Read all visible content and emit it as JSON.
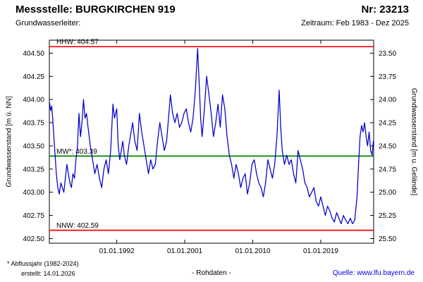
{
  "header": {
    "title": "Messstelle: BURGKIRCHEN 919",
    "number": "Nr: 23213",
    "subtitle_left": "Grundwasserleiter:",
    "subtitle_right": "Zeitraum: Feb 1983 - Dez 2025"
  },
  "footer": {
    "footnote": "* Abflussjahr (1982-2024)",
    "created": "erstellt:  14.01.2026",
    "center": "- Rohdaten -",
    "source_label": "Quelle:",
    "source_link": "www.lfu.bayern.de"
  },
  "chart_data": {
    "type": "line",
    "title": "Messstelle: BURGKIRCHEN 919",
    "series_name": "Rohdaten",
    "ylabel_left": "Grundwasserstand [m ü. NN]",
    "ylabel_right": "Grundwasserstand [m u. Gelände]",
    "x_ticks": [
      "01.01.1992",
      "01.01.2001",
      "01.01.2010",
      "01.01.2019"
    ],
    "x_tick_years": [
      1992.0,
      2001.0,
      2010.0,
      2019.0
    ],
    "x_range": [
      1983.08,
      2026.0
    ],
    "y_range": [
      402.45,
      404.64
    ],
    "y_left_tick_labels": [
      "402.50",
      "402.75",
      "403.00",
      "403.25",
      "403.50",
      "403.75",
      "404.00",
      "404.25",
      "404.50"
    ],
    "y_right_tick_labels": [
      "23.50",
      "23.75",
      "24.00",
      "24.25",
      "24.50",
      "24.75",
      "25.00",
      "25.25",
      "25.50"
    ],
    "right_axis_offset": 428.0,
    "grid": false,
    "legend": "none",
    "line_color": "#0000cc",
    "ref_lines": [
      {
        "name": "hhw",
        "label": "HHW: 404.57",
        "value": 404.57,
        "color": "#ff0000"
      },
      {
        "name": "mw",
        "label": "MW*: 403.39",
        "value": 403.39,
        "color": "#008000"
      },
      {
        "name": "nnw",
        "label": "NNW: 402.59",
        "value": 402.59,
        "color": "#ff0000"
      }
    ],
    "x": [
      1983.1,
      1983.25,
      1983.4,
      1983.6,
      1983.8,
      1984.0,
      1984.2,
      1984.4,
      1984.6,
      1984.8,
      1985.0,
      1985.2,
      1985.4,
      1985.6,
      1985.8,
      1986.0,
      1986.2,
      1986.4,
      1986.6,
      1986.8,
      1987.0,
      1987.2,
      1987.4,
      1987.6,
      1987.8,
      1988.0,
      1988.2,
      1988.5,
      1988.8,
      1989.1,
      1989.4,
      1989.7,
      1990.0,
      1990.3,
      1990.6,
      1990.9,
      1991.2,
      1991.5,
      1991.7,
      1992.0,
      1992.2,
      1992.4,
      1992.6,
      1992.8,
      1993.0,
      1993.3,
      1993.6,
      1993.9,
      1994.1,
      1994.4,
      1994.7,
      1995.0,
      1995.3,
      1995.6,
      1995.9,
      1996.2,
      1996.5,
      1996.8,
      1997.1,
      1997.4,
      1997.7,
      1998.0,
      1998.3,
      1998.6,
      1998.9,
      1999.1,
      1999.4,
      1999.7,
      2000.0,
      2000.3,
      2000.6,
      2000.9,
      2001.2,
      2001.5,
      2001.8,
      2002.1,
      2002.4,
      2002.7,
      2002.9,
      2003.1,
      2003.3,
      2003.6,
      2003.9,
      2004.2,
      2004.5,
      2004.8,
      2005.1,
      2005.4,
      2005.7,
      2006.0,
      2006.3,
      2006.6,
      2006.9,
      2007.2,
      2007.5,
      2007.8,
      2008.1,
      2008.4,
      2008.7,
      2009.0,
      2009.3,
      2009.6,
      2009.9,
      2010.2,
      2010.5,
      2010.8,
      2011.1,
      2011.4,
      2011.7,
      2012.0,
      2012.3,
      2012.6,
      2012.9,
      2013.2,
      2013.5,
      2013.7,
      2013.9,
      2014.2,
      2014.5,
      2014.8,
      2015.1,
      2015.4,
      2015.7,
      2016.0,
      2016.3,
      2016.6,
      2016.9,
      2017.2,
      2017.5,
      2017.8,
      2018.1,
      2018.4,
      2018.7,
      2019.0,
      2019.3,
      2019.6,
      2019.9,
      2020.2,
      2020.5,
      2020.8,
      2021.1,
      2021.4,
      2021.7,
      2022.0,
      2022.3,
      2022.6,
      2022.9,
      2023.2,
      2023.5,
      2023.8,
      2024.0,
      2024.2,
      2024.4,
      2024.6,
      2024.8,
      2025.0,
      2025.2,
      2025.4,
      2025.6,
      2025.8,
      2025.95
    ],
    "y": [
      403.97,
      403.88,
      403.93,
      403.7,
      403.45,
      403.2,
      403.05,
      402.98,
      403.1,
      403.05,
      403.0,
      403.15,
      403.3,
      403.2,
      403.1,
      403.05,
      403.2,
      403.15,
      403.35,
      403.5,
      403.85,
      403.6,
      403.75,
      404.0,
      403.8,
      403.85,
      403.7,
      403.5,
      403.35,
      403.2,
      403.3,
      403.15,
      403.05,
      403.25,
      403.35,
      403.2,
      403.45,
      403.95,
      403.8,
      403.9,
      403.5,
      403.35,
      403.45,
      403.55,
      403.4,
      403.3,
      403.5,
      403.65,
      403.75,
      403.55,
      403.45,
      403.85,
      403.65,
      403.5,
      403.35,
      403.2,
      403.35,
      403.25,
      403.3,
      403.55,
      403.75,
      403.6,
      403.45,
      403.55,
      403.85,
      404.05,
      403.85,
      403.75,
      403.85,
      403.7,
      403.75,
      403.85,
      403.9,
      403.75,
      403.65,
      403.8,
      404.1,
      404.55,
      404.2,
      403.8,
      403.6,
      403.9,
      404.25,
      404.05,
      403.85,
      403.6,
      403.75,
      403.95,
      403.7,
      404.05,
      403.9,
      403.6,
      403.4,
      403.3,
      403.15,
      403.3,
      403.2,
      403.05,
      403.15,
      403.2,
      402.98,
      403.1,
      403.3,
      403.35,
      403.2,
      403.1,
      403.05,
      402.95,
      403.1,
      403.35,
      403.25,
      403.15,
      403.3,
      403.6,
      404.1,
      403.7,
      403.45,
      403.3,
      403.4,
      403.3,
      403.35,
      403.2,
      403.1,
      403.45,
      403.35,
      403.25,
      403.1,
      403.05,
      402.95,
      403.0,
      403.05,
      402.9,
      402.85,
      402.95,
      402.85,
      402.75,
      402.85,
      402.8,
      402.72,
      402.68,
      402.78,
      402.72,
      402.66,
      402.75,
      402.7,
      402.66,
      402.72,
      402.66,
      402.7,
      402.95,
      403.3,
      403.6,
      403.72,
      403.65,
      403.75,
      403.6,
      403.5,
      403.65,
      403.45,
      403.4,
      403.55
    ]
  }
}
